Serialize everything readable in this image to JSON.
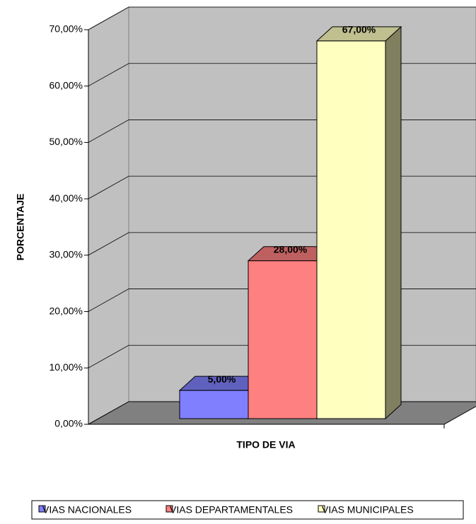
{
  "chart_data": {
    "type": "bar3d",
    "y_label": "PORCENTAJE",
    "x_label": "TIPO DE VIA",
    "ylim": [
      0,
      70
    ],
    "yticks": [
      {
        "value": 0,
        "label": "0,00%"
      },
      {
        "value": 10,
        "label": "10,00%"
      },
      {
        "value": 20,
        "label": "20,00%"
      },
      {
        "value": 30,
        "label": "30,00%"
      },
      {
        "value": 40,
        "label": "40,00%"
      },
      {
        "value": 50,
        "label": "50,00%"
      },
      {
        "value": 60,
        "label": "60,00%"
      },
      {
        "value": 70,
        "label": "70,00%"
      }
    ],
    "grid": true,
    "legend": "bottom",
    "series": [
      {
        "name": "VIAS NACIONALES",
        "color": "#8080ff",
        "values": [
          5
        ],
        "value_labels": [
          "5,00%"
        ]
      },
      {
        "name": "VIAS DEPARTAMENTALES",
        "color": "#ff8080",
        "values": [
          28
        ],
        "value_labels": [
          "28,00%"
        ]
      },
      {
        "name": "VIAS MUNICIPALES",
        "color": "#ffffc0",
        "values": [
          67
        ],
        "value_labels": [
          "67,00%"
        ]
      }
    ]
  }
}
